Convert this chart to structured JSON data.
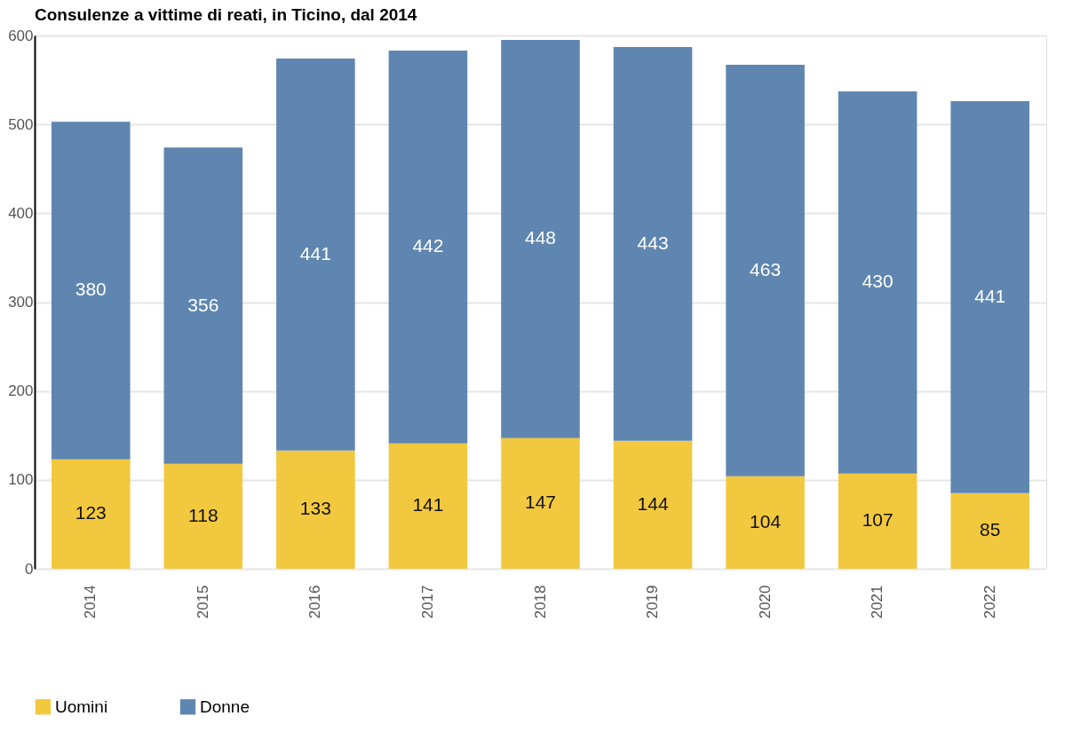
{
  "chart_data": {
    "type": "bar",
    "title": "Consulenze a vittime di reati, in Ticino, dal 2014",
    "categories": [
      "2014",
      "2015",
      "2016",
      "2017",
      "2018",
      "2019",
      "2020",
      "2021",
      "2022"
    ],
    "series": [
      {
        "name": "Uomini",
        "color": "#f2c83f",
        "values": [
          123,
          118,
          133,
          141,
          147,
          144,
          104,
          107,
          85
        ]
      },
      {
        "name": "Donne",
        "color": "#5f86b0",
        "values": [
          380,
          356,
          441,
          442,
          448,
          443,
          463,
          430,
          441
        ]
      }
    ],
    "stacked": true,
    "ylim": [
      0,
      600
    ],
    "yticks": [
      0,
      100,
      200,
      300,
      400,
      500,
      600
    ],
    "grid": "y",
    "legend": "bottom left",
    "data_labels": true
  }
}
